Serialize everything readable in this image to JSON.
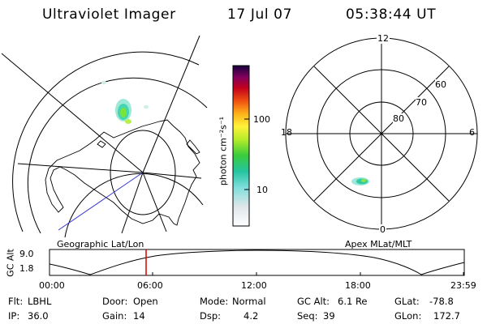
{
  "header": {
    "instrument": "Ultraviolet Imager",
    "date": "17 Jul 07",
    "time": "05:38:44 UT"
  },
  "colorbar": {
    "unit_label": "photon cm⁻²s⁻¹",
    "tick_100": "100",
    "tick_10": "10"
  },
  "left_map": {
    "caption": "Geographic Lat/Lon"
  },
  "right_map": {
    "caption": "Apex MLat/MLT",
    "mlt_labels": {
      "top": "12",
      "left": "18",
      "right": "6",
      "bottom": "0"
    },
    "mlat_labels": {
      "outer": "60",
      "middle": "70",
      "inner": "80"
    }
  },
  "altitude_plot": {
    "axis_label": "GC Alt",
    "y_ticks": [
      "9.0",
      "1.8"
    ],
    "x_ticks": [
      "00:00",
      "06:00",
      "12:00",
      "18:00",
      "23:59"
    ],
    "marker_color": "#d40000"
  },
  "footer": {
    "row1": [
      {
        "label": "Flt:",
        "value": "LBHL"
      },
      {
        "label": "Door:",
        "value": "Open"
      },
      {
        "label": "Mode:",
        "value": "Normal"
      },
      {
        "label": "GC Alt:",
        "value": "6.1 Re"
      },
      {
        "label": "GLat:",
        "value": "-78.8"
      }
    ],
    "row2": [
      {
        "label": "IP:",
        "value": "36.0"
      },
      {
        "label": "Gain:",
        "value": "14"
      },
      {
        "label": "Dsp:",
        "value": "4.2"
      },
      {
        "label": "Seq:",
        "value": "39"
      },
      {
        "label": "GLon:",
        "value": "172.7"
      }
    ]
  }
}
